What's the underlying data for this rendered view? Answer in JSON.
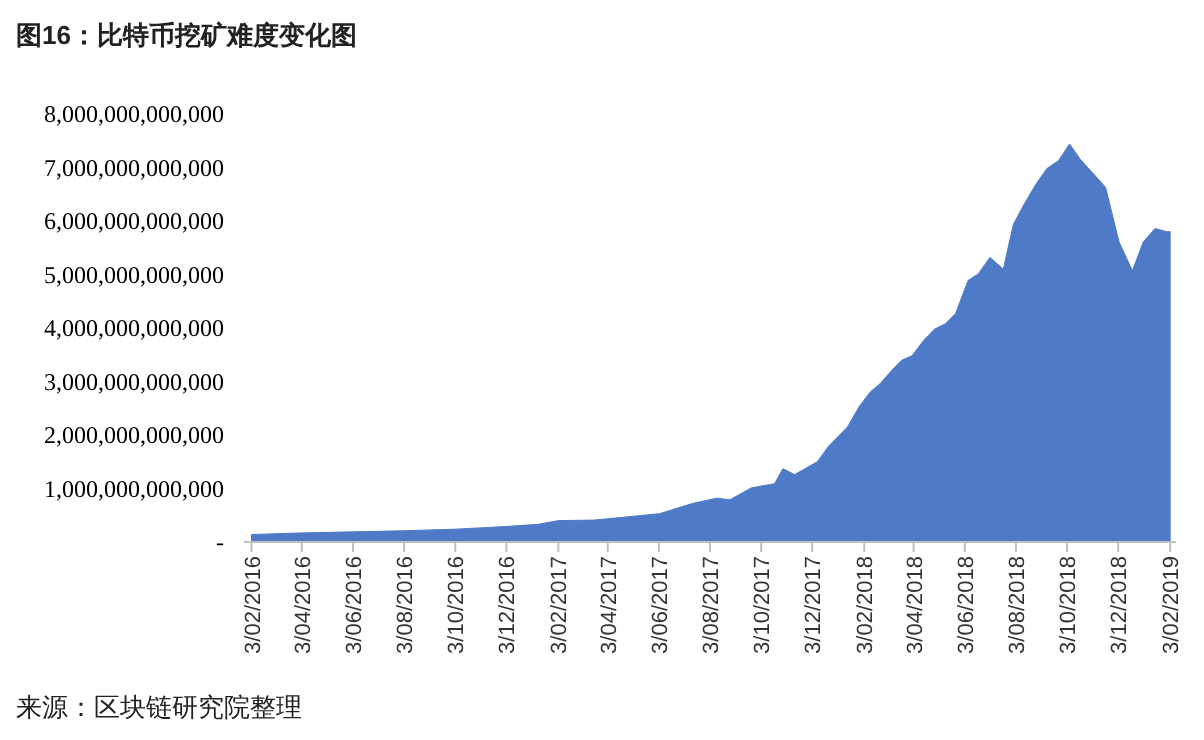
{
  "chart_data": {
    "type": "area",
    "title": "图16：比特币挖矿难度变化图",
    "annotations": [
      "来源：区块链研究院整理"
    ],
    "x": [
      "2016-02-03",
      "2016-04-03",
      "2016-06-03",
      "2016-08-03",
      "2016-10-03",
      "2016-12-03",
      "2017-01-10",
      "2017-02-03",
      "2017-03-18",
      "2017-06-04",
      "2017-07-13",
      "2017-08-11",
      "2017-08-27",
      "2017-09-21",
      "2017-10-19",
      "2017-10-29",
      "2017-11-12",
      "2017-12-09",
      "2017-12-23",
      "2018-01-14",
      "2018-01-28",
      "2018-02-10",
      "2018-02-22",
      "2018-03-08",
      "2018-03-20",
      "2018-04-01",
      "2018-04-15",
      "2018-04-28",
      "2018-05-11",
      "2018-05-23",
      "2018-06-07",
      "2018-06-19",
      "2018-07-03",
      "2018-07-19",
      "2018-07-31",
      "2018-08-13",
      "2018-08-27",
      "2018-09-09",
      "2018-09-23",
      "2018-10-06",
      "2018-10-19",
      "2018-11-18",
      "2018-12-04",
      "2018-12-20",
      "2019-01-02",
      "2019-01-16",
      "2019-01-30",
      "2019-02-03"
    ],
    "values": [
      140000000000,
      170000000000,
      190000000000,
      210000000000,
      240000000000,
      290000000000,
      330000000000,
      400000000000,
      410000000000,
      530000000000,
      720000000000,
      820000000000,
      790000000000,
      1010000000000,
      1090000000000,
      1370000000000,
      1260000000000,
      1500000000000,
      1800000000000,
      2150000000000,
      2530000000000,
      2800000000000,
      2960000000000,
      3210000000000,
      3400000000000,
      3480000000000,
      3770000000000,
      3980000000000,
      4080000000000,
      4270000000000,
      4890000000000,
      5010000000000,
      5320000000000,
      5100000000000,
      5940000000000,
      6320000000000,
      6690000000000,
      6980000000000,
      7130000000000,
      7440000000000,
      7150000000000,
      6630000000000,
      5610000000000,
      5070000000000,
      5610000000000,
      5860000000000,
      5800000000000,
      5800000000000
    ],
    "color": "#4f7ac7",
    "xlim": [
      "2016-01-25",
      "2019-02-10"
    ],
    "xticks": [
      {
        "value": "2016-02-03",
        "label": "3/02/2016"
      },
      {
        "value": "2016-04-03",
        "label": "3/04/2016"
      },
      {
        "value": "2016-06-03",
        "label": "3/06/2016"
      },
      {
        "value": "2016-08-03",
        "label": "3/08/2016"
      },
      {
        "value": "2016-10-03",
        "label": "3/10/2016"
      },
      {
        "value": "2016-12-03",
        "label": "3/12/2016"
      },
      {
        "value": "2017-02-03",
        "label": "3/02/2017"
      },
      {
        "value": "2017-04-03",
        "label": "3/04/2017"
      },
      {
        "value": "2017-06-03",
        "label": "3/06/2017"
      },
      {
        "value": "2017-08-03",
        "label": "3/08/2017"
      },
      {
        "value": "2017-10-03",
        "label": "3/10/2017"
      },
      {
        "value": "2017-12-03",
        "label": "3/12/2017"
      },
      {
        "value": "2018-02-03",
        "label": "3/02/2018"
      },
      {
        "value": "2018-04-03",
        "label": "3/04/2018"
      },
      {
        "value": "2018-06-03",
        "label": "3/06/2018"
      },
      {
        "value": "2018-08-03",
        "label": "3/08/2018"
      },
      {
        "value": "2018-10-03",
        "label": "3/10/2018"
      },
      {
        "value": "2018-12-03",
        "label": "3/12/2018"
      },
      {
        "value": "2019-02-03",
        "label": "3/02/2019"
      }
    ],
    "ylim": [
      0,
      8000000000000
    ],
    "yticks": [
      {
        "value": 0,
        "label": "-"
      },
      {
        "value": 1000000000000,
        "label": "1,000,000,000,000"
      },
      {
        "value": 2000000000000,
        "label": "2,000,000,000,000"
      },
      {
        "value": 3000000000000,
        "label": "3,000,000,000,000"
      },
      {
        "value": 4000000000000,
        "label": "4,000,000,000,000"
      },
      {
        "value": 5000000000000,
        "label": "5,000,000,000,000"
      },
      {
        "value": 6000000000000,
        "label": "6,000,000,000,000"
      },
      {
        "value": 7000000000000,
        "label": "7,000,000,000,000"
      },
      {
        "value": 8000000000000,
        "label": "8,000,000,000,000"
      }
    ],
    "grid": false
  }
}
